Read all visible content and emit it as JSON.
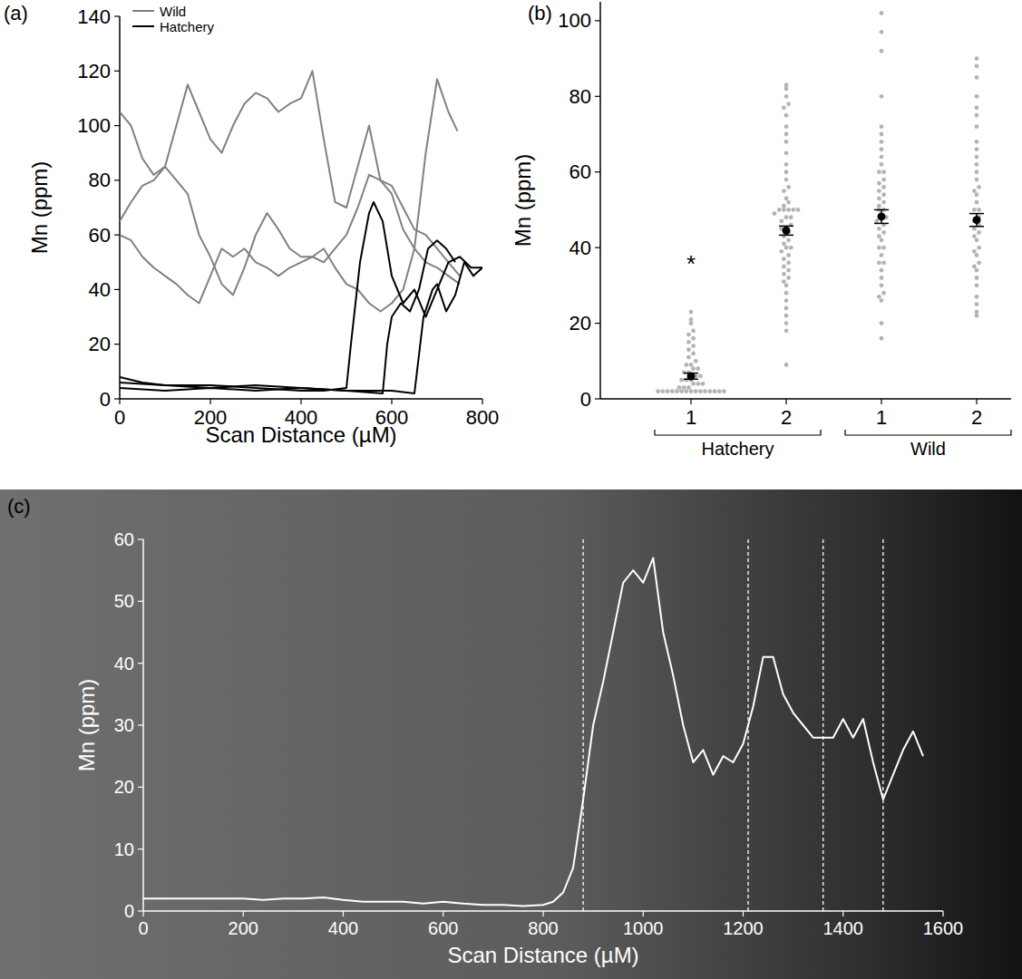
{
  "chart_data": [
    {
      "type": "line",
      "panel": "(a)",
      "x_label": "Scan Distance (µM)",
      "y_label": "Mn (ppm)",
      "xlim": [
        0,
        800
      ],
      "xticks": [
        0,
        200,
        400,
        600,
        800
      ],
      "ylim": [
        0,
        140
      ],
      "yticks": [
        0,
        20,
        40,
        60,
        80,
        100,
        120,
        140
      ],
      "legend": "top-left",
      "series": [
        {
          "name": "Wild",
          "color": "#808080",
          "x": [
            0,
            25,
            50,
            75,
            100,
            125,
            150,
            175,
            200,
            225,
            250,
            275,
            300,
            325,
            350,
            375,
            400,
            425,
            450,
            475,
            500,
            525,
            550,
            575,
            600,
            625,
            650,
            675,
            700,
            725,
            745
          ],
          "values": [
            105,
            100,
            88,
            82,
            85,
            100,
            115,
            105,
            95,
            90,
            100,
            108,
            112,
            110,
            105,
            108,
            110,
            120,
            95,
            72,
            70,
            85,
            100,
            80,
            75,
            62,
            55,
            90,
            117,
            105,
            98
          ]
        },
        {
          "color": "#808080",
          "x": [
            0,
            25,
            50,
            75,
            100,
            125,
            150,
            175,
            200,
            225,
            250,
            275,
            300,
            325,
            350,
            375,
            400,
            425,
            450,
            475,
            500,
            525,
            550,
            575,
            600,
            625,
            650,
            675,
            700,
            725,
            750
          ],
          "values": [
            65,
            72,
            78,
            80,
            85,
            80,
            75,
            60,
            52,
            42,
            38,
            48,
            60,
            68,
            62,
            55,
            52,
            52,
            50,
            55,
            60,
            70,
            82,
            80,
            78,
            70,
            62,
            60,
            55,
            50,
            45
          ]
        },
        {
          "color": "#808080",
          "x": [
            0,
            25,
            50,
            75,
            100,
            125,
            150,
            175,
            200,
            225,
            250,
            275,
            300,
            325,
            350,
            375,
            400,
            425,
            450,
            475,
            500,
            525,
            550,
            575,
            600,
            625,
            650,
            675,
            700,
            725,
            750
          ],
          "values": [
            60,
            58,
            52,
            48,
            45,
            42,
            38,
            35,
            45,
            55,
            52,
            55,
            50,
            48,
            45,
            48,
            50,
            52,
            55,
            48,
            42,
            40,
            35,
            32,
            35,
            40,
            55,
            50,
            48,
            45,
            42
          ]
        },
        {
          "name": "Hatchery",
          "color": "#000000",
          "x": [
            0,
            50,
            100,
            200,
            300,
            400,
            450,
            500,
            510,
            530,
            550,
            560,
            580,
            600,
            625,
            650,
            675,
            700,
            725,
            750,
            775,
            800
          ],
          "values": [
            8,
            6,
            5,
            5,
            4,
            3,
            3,
            4,
            20,
            50,
            68,
            72,
            65,
            45,
            35,
            40,
            30,
            40,
            50,
            52,
            48,
            48
          ]
        },
        {
          "color": "#000000",
          "x": [
            0,
            100,
            200,
            300,
            400,
            500,
            580,
            590,
            600,
            620,
            640,
            660,
            680,
            700,
            720,
            740
          ],
          "values": [
            6,
            5,
            4,
            5,
            4,
            3,
            2,
            20,
            30,
            35,
            32,
            40,
            55,
            58,
            55,
            50
          ]
        },
        {
          "color": "#000000",
          "x": [
            0,
            100,
            200,
            300,
            400,
            500,
            600,
            650,
            670,
            690,
            700,
            720,
            740,
            760,
            780,
            800
          ],
          "values": [
            4,
            3,
            4,
            3,
            4,
            3,
            3,
            2,
            30,
            40,
            42,
            32,
            38,
            50,
            45,
            48
          ]
        }
      ]
    },
    {
      "type": "strip",
      "panel": "(b)",
      "y_label": "Mn (ppm)",
      "categories": [
        "1",
        "2",
        "1",
        "2"
      ],
      "groups": [
        {
          "name": "Hatchery",
          "count": 2
        },
        {
          "name": "Wild",
          "count": 2
        }
      ],
      "ylim": [
        0,
        105
      ],
      "yticks": [
        0,
        20,
        40,
        60,
        80,
        100
      ],
      "color": "#b4b4b4",
      "points": [
        [
          2,
          2,
          2,
          2,
          2,
          2,
          2,
          2,
          2,
          2,
          2,
          2,
          2,
          2,
          2,
          3,
          3,
          3,
          4,
          4,
          4,
          5,
          5,
          5,
          6,
          6,
          7,
          7,
          8,
          8,
          9,
          9,
          10,
          11,
          12,
          13,
          14,
          15,
          16,
          17,
          18,
          20,
          21,
          23
        ],
        [
          9,
          18,
          20,
          22,
          24,
          26,
          28,
          30,
          31,
          32,
          33,
          34,
          35,
          36,
          37,
          38,
          39,
          40,
          40,
          41,
          42,
          43,
          44,
          45,
          45,
          46,
          47,
          48,
          48,
          49,
          50,
          50,
          50,
          50,
          50,
          51,
          52,
          53,
          55,
          56,
          58,
          60,
          62,
          65,
          68,
          70,
          72,
          75,
          77,
          78,
          80,
          82,
          83
        ],
        [
          16,
          20,
          26,
          27,
          28,
          30,
          32,
          34,
          36,
          36,
          38,
          40,
          40,
          42,
          43,
          44,
          45,
          46,
          47,
          48,
          48,
          50,
          50,
          51,
          52,
          53,
          54,
          55,
          56,
          57,
          58,
          60,
          60,
          62,
          64,
          66,
          68,
          70,
          72,
          80,
          92,
          97,
          102
        ],
        [
          22,
          23,
          25,
          27,
          30,
          32,
          34,
          35,
          36,
          38,
          39,
          40,
          42,
          43,
          44,
          45,
          46,
          47,
          48,
          50,
          50,
          52,
          54,
          55,
          56,
          58,
          60,
          62,
          64,
          66,
          68,
          72,
          75,
          77,
          80,
          85,
          88,
          90
        ]
      ],
      "means": [
        6,
        44.5,
        48.2,
        47.3
      ],
      "errors": [
        0.8,
        1.2,
        1.8,
        1.7
      ],
      "annotations": [
        {
          "text": "*",
          "category": 0,
          "y": 36
        }
      ]
    },
    {
      "type": "line",
      "panel": "(c)",
      "x_label": "Scan Distance (µM)",
      "y_label": "Mn (ppm)",
      "xlim": [
        0,
        1600
      ],
      "xticks": [
        0,
        200,
        400,
        600,
        800,
        1000,
        1200,
        1400,
        1600
      ],
      "ylim": [
        0,
        60
      ],
      "yticks": [
        0,
        10,
        20,
        30,
        40,
        50,
        60
      ],
      "reference_lines": [
        880,
        1210,
        1360,
        1480
      ],
      "series": [
        {
          "color": "#ffffff",
          "x": [
            0,
            40,
            80,
            120,
            160,
            200,
            240,
            280,
            320,
            360,
            400,
            440,
            480,
            520,
            560,
            600,
            640,
            680,
            720,
            760,
            800,
            820,
            840,
            860,
            880,
            900,
            920,
            940,
            960,
            980,
            1000,
            1020,
            1040,
            1060,
            1080,
            1100,
            1120,
            1140,
            1160,
            1180,
            1200,
            1220,
            1240,
            1260,
            1280,
            1300,
            1320,
            1340,
            1360,
            1380,
            1400,
            1420,
            1440,
            1460,
            1480,
            1500,
            1520,
            1540,
            1560
          ],
          "values": [
            2,
            2,
            2,
            2,
            2,
            2,
            1.8,
            2,
            2,
            2.2,
            1.8,
            1.5,
            1.5,
            1.5,
            1.2,
            1.5,
            1.2,
            1,
            1,
            0.8,
            1,
            1.5,
            3,
            7,
            18,
            30,
            37,
            45,
            53,
            55,
            53,
            57,
            45,
            38,
            30,
            24,
            26,
            22,
            25,
            24,
            27,
            33,
            41,
            41,
            35,
            32,
            30,
            28,
            28,
            28,
            31,
            28,
            31,
            24,
            18,
            22,
            26,
            29,
            25
          ]
        }
      ]
    }
  ]
}
